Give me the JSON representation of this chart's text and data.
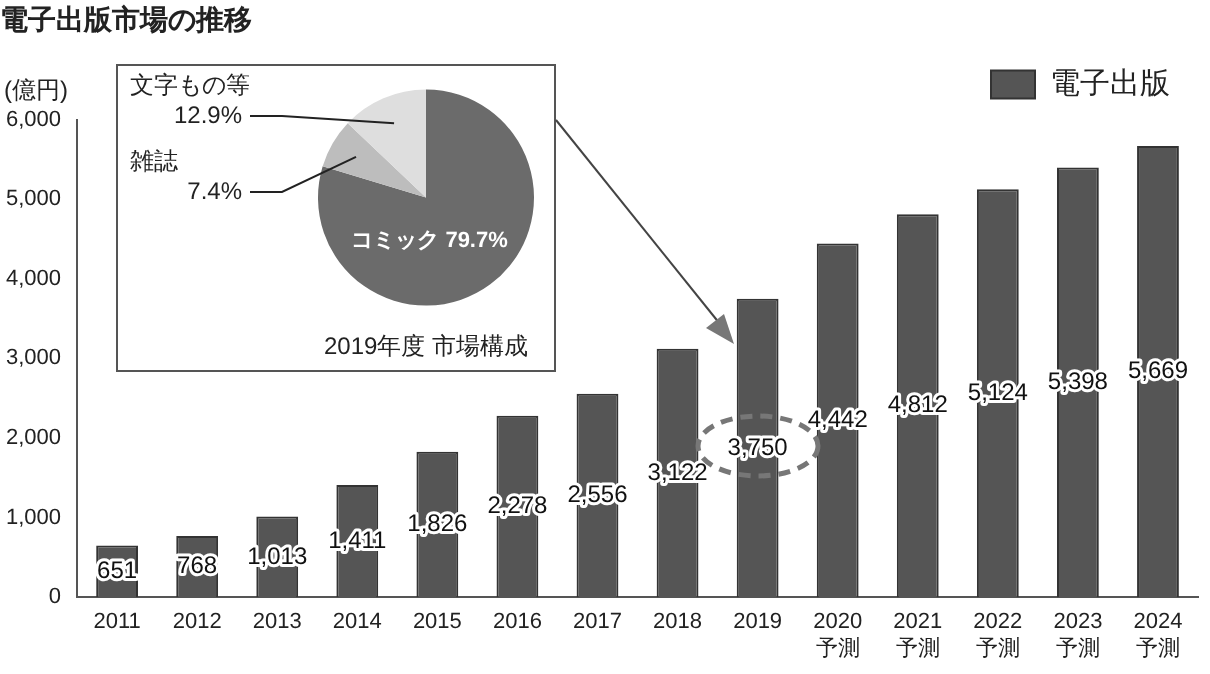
{
  "chart_data": [
    {
      "type": "bar",
      "title": "電子出版市場の推移",
      "ylabel": "(億円)",
      "categories": [
        "2011",
        "2012",
        "2013",
        "2014",
        "2015",
        "2016",
        "2017",
        "2018",
        "2019",
        "2020\n予測",
        "2021\n予測",
        "2022\n予測",
        "2023\n予測",
        "2024\n予測"
      ],
      "series": [
        {
          "name": "電子出版",
          "color": "#555555",
          "values": [
            651,
            768,
            1013,
            1411,
            1826,
            2278,
            2556,
            3122,
            3750,
            4442,
            4812,
            5124,
            5398,
            5669
          ]
        }
      ],
      "ylim": [
        0,
        6000
      ],
      "yticks": [
        {
          "value": 0,
          "label": "0"
        },
        {
          "value": 1000,
          "label": "1,000"
        },
        {
          "value": 2000,
          "label": "2,000"
        },
        {
          "value": 3000,
          "label": "3,000"
        },
        {
          "value": 4000,
          "label": "4,000"
        },
        {
          "value": 5000,
          "label": "5,000"
        },
        {
          "value": 6000,
          "label": "6,000"
        }
      ],
      "value_labels": [
        "651",
        "768",
        "1,013",
        "1,411",
        "1,826",
        "2,278",
        "2,556",
        "3,122",
        "3,750",
        "4,442",
        "4,812",
        "5,124",
        "5,398",
        "5,669"
      ],
      "grid": false,
      "legend": "top right"
    },
    {
      "type": "pie",
      "title": "2019年度 市場構成",
      "categories": [
        "コミック",
        "雑誌",
        "文字もの等"
      ],
      "values": [
        79.7,
        7.4,
        12.9
      ],
      "value_labels": [
        "79.7%",
        "7.4%",
        "12.9%"
      ],
      "colors": [
        "#6b6b6b",
        "#bdbdbd",
        "#dedede"
      ],
      "legend": false
    }
  ]
}
